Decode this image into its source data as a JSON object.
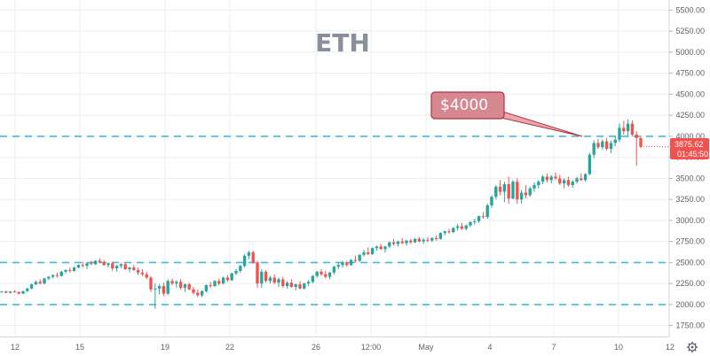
{
  "chart_data": {
    "type": "candlestick",
    "title": "ETH",
    "ylim": [
      1620,
      5620
    ],
    "y_ticks": [
      "1750.00",
      "2000.00",
      "2250.00",
      "2500.00",
      "2750.00",
      "3000.00",
      "3250.00",
      "3500.00",
      "3750.00",
      "4000.00",
      "4250.00",
      "4500.00",
      "4750.00",
      "5000.00",
      "5250.00",
      "5500.00"
    ],
    "x_ticks": [
      "12",
      "15",
      "19",
      "22",
      "26",
      "12:00",
      "May",
      "4",
      "7",
      "10",
      "12"
    ],
    "horizontal_levels": [
      2000,
      2500,
      4000
    ],
    "annotation": {
      "text": "$4000"
    },
    "last_price": {
      "price": "3875.62",
      "countdown": "01:45:50"
    },
    "candles": [
      [
        2150,
        2160,
        2140,
        2155
      ],
      [
        2155,
        2165,
        2135,
        2140
      ],
      [
        2140,
        2160,
        2130,
        2155
      ],
      [
        2155,
        2170,
        2145,
        2150
      ],
      [
        2150,
        2155,
        2120,
        2130
      ],
      [
        2130,
        2165,
        2125,
        2160
      ],
      [
        2160,
        2200,
        2150,
        2190
      ],
      [
        2190,
        2250,
        2180,
        2240
      ],
      [
        2240,
        2285,
        2230,
        2270
      ],
      [
        2270,
        2300,
        2240,
        2250
      ],
      [
        2250,
        2320,
        2240,
        2310
      ],
      [
        2310,
        2340,
        2290,
        2330
      ],
      [
        2330,
        2360,
        2310,
        2350
      ],
      [
        2350,
        2380,
        2320,
        2340
      ],
      [
        2340,
        2400,
        2330,
        2390
      ],
      [
        2390,
        2420,
        2370,
        2410
      ],
      [
        2410,
        2440,
        2380,
        2400
      ],
      [
        2400,
        2450,
        2390,
        2440
      ],
      [
        2440,
        2480,
        2430,
        2470
      ],
      [
        2470,
        2510,
        2440,
        2460
      ],
      [
        2460,
        2500,
        2420,
        2490
      ],
      [
        2490,
        2520,
        2470,
        2480
      ],
      [
        2480,
        2530,
        2470,
        2520
      ],
      [
        2520,
        2550,
        2490,
        2500
      ],
      [
        2500,
        2530,
        2460,
        2470
      ],
      [
        2470,
        2500,
        2440,
        2490
      ],
      [
        2490,
        2510,
        2400,
        2430
      ],
      [
        2430,
        2470,
        2390,
        2460
      ],
      [
        2460,
        2490,
        2430,
        2480
      ],
      [
        2480,
        2500,
        2410,
        2420
      ],
      [
        2420,
        2450,
        2380,
        2440
      ],
      [
        2440,
        2470,
        2400,
        2410
      ],
      [
        2410,
        2440,
        2350,
        2380
      ],
      [
        2380,
        2420,
        2340,
        2360
      ],
      [
        2360,
        2390,
        2300,
        2320
      ],
      [
        2320,
        2340,
        2150,
        2180
      ],
      [
        2180,
        2250,
        1950,
        2190
      ],
      [
        2190,
        2240,
        2120,
        2220
      ],
      [
        2220,
        2260,
        2100,
        2130
      ],
      [
        2130,
        2300,
        2110,
        2280
      ],
      [
        2280,
        2310,
        2230,
        2250
      ],
      [
        2250,
        2290,
        2200,
        2270
      ],
      [
        2270,
        2300,
        2180,
        2200
      ],
      [
        2200,
        2250,
        2150,
        2240
      ],
      [
        2240,
        2260,
        2170,
        2180
      ],
      [
        2180,
        2210,
        2120,
        2140
      ],
      [
        2140,
        2180,
        2090,
        2110
      ],
      [
        2110,
        2170,
        2090,
        2160
      ],
      [
        2160,
        2240,
        2140,
        2230
      ],
      [
        2230,
        2270,
        2200,
        2220
      ],
      [
        2220,
        2290,
        2210,
        2280
      ],
      [
        2280,
        2310,
        2230,
        2250
      ],
      [
        2250,
        2330,
        2240,
        2320
      ],
      [
        2320,
        2350,
        2270,
        2290
      ],
      [
        2290,
        2380,
        2280,
        2370
      ],
      [
        2370,
        2420,
        2350,
        2400
      ],
      [
        2400,
        2470,
        2380,
        2460
      ],
      [
        2460,
        2600,
        2440,
        2580
      ],
      [
        2580,
        2640,
        2540,
        2620
      ],
      [
        2620,
        2640,
        2480,
        2500
      ],
      [
        2500,
        2520,
        2200,
        2250
      ],
      [
        2250,
        2420,
        2200,
        2390
      ],
      [
        2390,
        2410,
        2260,
        2280
      ],
      [
        2280,
        2340,
        2250,
        2320
      ],
      [
        2320,
        2360,
        2240,
        2260
      ],
      [
        2260,
        2320,
        2210,
        2300
      ],
      [
        2300,
        2330,
        2200,
        2220
      ],
      [
        2220,
        2280,
        2190,
        2260
      ],
      [
        2260,
        2300,
        2200,
        2210
      ],
      [
        2210,
        2250,
        2170,
        2240
      ],
      [
        2240,
        2280,
        2180,
        2190
      ],
      [
        2190,
        2260,
        2180,
        2250
      ],
      [
        2250,
        2290,
        2220,
        2270
      ],
      [
        2270,
        2350,
        2250,
        2340
      ],
      [
        2340,
        2400,
        2320,
        2390
      ],
      [
        2390,
        2420,
        2340,
        2360
      ],
      [
        2360,
        2400,
        2310,
        2330
      ],
      [
        2330,
        2390,
        2300,
        2380
      ],
      [
        2380,
        2460,
        2360,
        2450
      ],
      [
        2450,
        2500,
        2420,
        2470
      ],
      [
        2470,
        2520,
        2440,
        2500
      ],
      [
        2500,
        2520,
        2450,
        2470
      ],
      [
        2470,
        2540,
        2460,
        2530
      ],
      [
        2530,
        2580,
        2500,
        2520
      ],
      [
        2520,
        2600,
        2510,
        2590
      ],
      [
        2590,
        2650,
        2570,
        2620
      ],
      [
        2620,
        2680,
        2590,
        2600
      ],
      [
        2600,
        2680,
        2590,
        2670
      ],
      [
        2670,
        2700,
        2640,
        2690
      ],
      [
        2690,
        2720,
        2650,
        2660
      ],
      [
        2660,
        2700,
        2620,
        2690
      ],
      [
        2690,
        2750,
        2670,
        2740
      ],
      [
        2740,
        2780,
        2700,
        2720
      ],
      [
        2720,
        2760,
        2690,
        2750
      ],
      [
        2750,
        2790,
        2720,
        2730
      ],
      [
        2730,
        2770,
        2700,
        2760
      ],
      [
        2760,
        2780,
        2720,
        2740
      ],
      [
        2740,
        2790,
        2730,
        2780
      ],
      [
        2780,
        2800,
        2740,
        2750
      ],
      [
        2750,
        2790,
        2720,
        2770
      ],
      [
        2770,
        2800,
        2740,
        2760
      ],
      [
        2760,
        2800,
        2740,
        2790
      ],
      [
        2790,
        2820,
        2760,
        2780
      ],
      [
        2780,
        2860,
        2770,
        2850
      ],
      [
        2850,
        2880,
        2820,
        2870
      ],
      [
        2870,
        2900,
        2840,
        2860
      ],
      [
        2860,
        2920,
        2850,
        2910
      ],
      [
        2910,
        2960,
        2880,
        2930
      ],
      [
        2930,
        2970,
        2890,
        2900
      ],
      [
        2900,
        2950,
        2880,
        2940
      ],
      [
        2940,
        2990,
        2920,
        2980
      ],
      [
        2980,
        3020,
        2950,
        2990
      ],
      [
        2990,
        3060,
        2970,
        3050
      ],
      [
        3050,
        3100,
        3020,
        3040
      ],
      [
        3040,
        3200,
        3020,
        3180
      ],
      [
        3180,
        3300,
        3150,
        3280
      ],
      [
        3280,
        3420,
        3250,
        3400
      ],
      [
        3400,
        3480,
        3300,
        3340
      ],
      [
        3340,
        3460,
        3220,
        3430
      ],
      [
        3430,
        3520,
        3200,
        3260
      ],
      [
        3260,
        3480,
        3250,
        3460
      ],
      [
        3460,
        3500,
        3200,
        3250
      ],
      [
        3250,
        3360,
        3200,
        3330
      ],
      [
        3330,
        3420,
        3260,
        3300
      ],
      [
        3300,
        3400,
        3280,
        3380
      ],
      [
        3380,
        3450,
        3340,
        3420
      ],
      [
        3420,
        3480,
        3380,
        3460
      ],
      [
        3460,
        3540,
        3430,
        3520
      ],
      [
        3520,
        3560,
        3450,
        3480
      ],
      [
        3480,
        3540,
        3440,
        3520
      ],
      [
        3520,
        3570,
        3480,
        3500
      ],
      [
        3500,
        3540,
        3420,
        3440
      ],
      [
        3440,
        3500,
        3380,
        3480
      ],
      [
        3480,
        3520,
        3400,
        3420
      ],
      [
        3420,
        3480,
        3390,
        3460
      ],
      [
        3460,
        3520,
        3440,
        3500
      ],
      [
        3500,
        3560,
        3470,
        3480
      ],
      [
        3480,
        3560,
        3460,
        3550
      ],
      [
        3550,
        3800,
        3540,
        3780
      ],
      [
        3780,
        3950,
        3740,
        3920
      ],
      [
        3920,
        3970,
        3850,
        3870
      ],
      [
        3870,
        3960,
        3840,
        3940
      ],
      [
        3940,
        3980,
        3830,
        3850
      ],
      [
        3850,
        3950,
        3800,
        3920
      ],
      [
        3920,
        4000,
        3880,
        3960
      ],
      [
        3960,
        4150,
        3930,
        4100
      ],
      [
        4100,
        4180,
        4020,
        4060
      ],
      [
        4060,
        4200,
        4000,
        4150
      ],
      [
        4150,
        4190,
        4000,
        4020
      ],
      [
        4020,
        4060,
        3650,
        3980
      ],
      [
        3980,
        4000,
        3860,
        3876
      ]
    ]
  }
}
